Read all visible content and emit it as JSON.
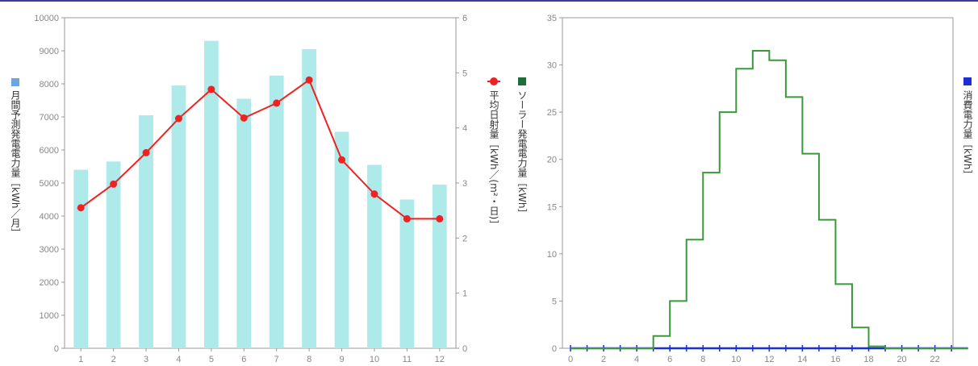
{
  "chart_data": [
    {
      "type": "bar",
      "title": "",
      "categories": [
        "1",
        "2",
        "3",
        "4",
        "5",
        "6",
        "7",
        "8",
        "9",
        "10",
        "11",
        "12"
      ],
      "ylabel_left": "月間予測発電電力量［kWh／月］",
      "ylabel_right": "平均日射量［kWh／(m²・日)］",
      "ylim_left": [
        0,
        10000
      ],
      "yticks_left": [
        "0",
        "1000",
        "2000",
        "3000",
        "4000",
        "5000",
        "6000",
        "7000",
        "8000",
        "9000",
        "10000"
      ],
      "ylim_right": [
        0,
        6
      ],
      "yticks_right": [
        "0",
        "1",
        "2",
        "3",
        "4",
        "5",
        "6"
      ],
      "bar_values": [
        5400,
        5650,
        7050,
        7950,
        9300,
        7550,
        8250,
        9050,
        6550,
        5550,
        4500,
        4950
      ],
      "line_values": [
        2.55,
        2.98,
        3.55,
        4.17,
        4.7,
        4.18,
        4.45,
        4.87,
        3.42,
        2.8,
        2.35,
        2.35
      ],
      "bar_color": "#aeeaea",
      "line_color": "#ee2222",
      "grid": false
    },
    {
      "type": "line",
      "title": "",
      "xlim": [
        0,
        24
      ],
      "xticks": [
        "0",
        "2",
        "4",
        "6",
        "8",
        "10",
        "12",
        "14",
        "16",
        "18",
        "20",
        "22"
      ],
      "ylim": [
        0,
        35
      ],
      "yticks": [
        "0",
        "5",
        "10",
        "15",
        "20",
        "25",
        "30",
        "35"
      ],
      "ylabel_left": "ソーラー発電電力量［kWh］",
      "ylabel_right": "消費電力量［kWh］",
      "solar_hourly": [
        0,
        0,
        0,
        0,
        0,
        1.3,
        5.0,
        11.5,
        18.6,
        25.0,
        29.6,
        31.5,
        30.5,
        26.6,
        20.6,
        13.6,
        6.8,
        2.2,
        0.2,
        0,
        0,
        0,
        0,
        0
      ],
      "consumption_hourly": [
        0,
        0,
        0,
        0,
        0,
        0,
        0,
        0,
        0,
        0,
        0,
        0,
        0,
        0,
        0,
        0,
        0,
        0,
        0,
        0,
        0,
        0,
        0,
        0
      ],
      "solar_color": "#3a9a3a",
      "consumption_color": "#1a2fd6",
      "grid": false
    }
  ],
  "legend": {
    "left_chart_bar_label": "月間予測発電電力量［kWh／月］",
    "left_chart_line_label": "平均日射量［kWh／(m²・日)］",
    "right_chart_solar_label": "ソーラー発電電力量［kWh］",
    "right_chart_consumption_label": "消費電力量［kWh］",
    "bar_marker_color": "#6aa6e0",
    "line_marker_color": "#ee2222",
    "solar_marker_color": "#1e6e3a",
    "consumption_marker_color": "#1a2fd6"
  }
}
